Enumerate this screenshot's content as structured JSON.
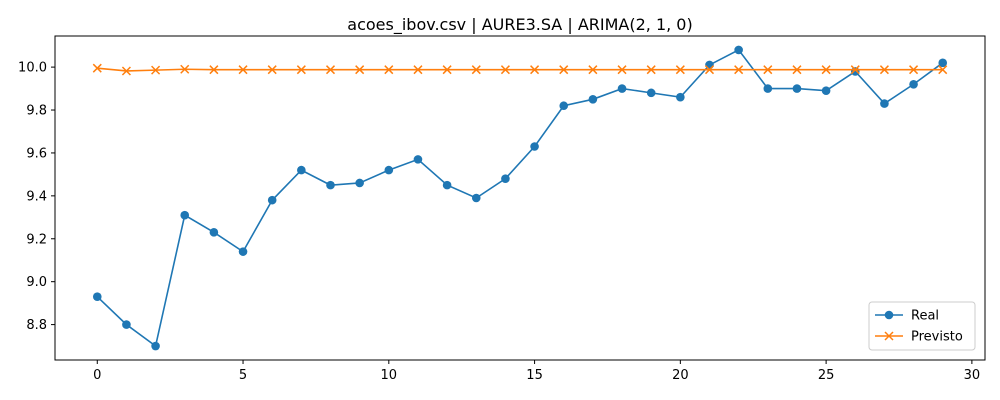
{
  "chart_data": {
    "type": "line",
    "title": "acoes_ibov.csv | AURE3.SA | ARIMA(2, 1, 0)",
    "xlabel": "",
    "ylabel": "",
    "xlim": [
      -1.45,
      30.45
    ],
    "ylim": [
      8.635,
      10.145
    ],
    "x_ticks": [
      0,
      5,
      10,
      15,
      20,
      25,
      30
    ],
    "x_tick_labels": [
      "0",
      "5",
      "10",
      "15",
      "20",
      "25",
      "30"
    ],
    "y_ticks": [
      8.8,
      9.0,
      9.2,
      9.4,
      9.6,
      9.8,
      10.0
    ],
    "y_tick_labels": [
      "8.8",
      "9.0",
      "9.2",
      "9.4",
      "9.6",
      "9.8",
      "10.0"
    ],
    "grid": false,
    "legend_position": "lower-right",
    "x": [
      0,
      1,
      2,
      3,
      4,
      5,
      6,
      7,
      8,
      9,
      10,
      11,
      12,
      13,
      14,
      15,
      16,
      17,
      18,
      19,
      20,
      21,
      22,
      23,
      24,
      25,
      26,
      27,
      28,
      29
    ],
    "series": [
      {
        "name": "Real",
        "color": "#1f77b4",
        "marker": "circle",
        "values": [
          8.93,
          8.8,
          8.7,
          9.31,
          9.23,
          9.14,
          9.38,
          9.52,
          9.45,
          9.46,
          9.52,
          9.57,
          9.45,
          9.39,
          9.48,
          9.63,
          9.82,
          9.85,
          9.9,
          9.88,
          9.86,
          10.01,
          10.08,
          9.9,
          9.9,
          9.89,
          9.98,
          9.83,
          9.92,
          10.02
        ]
      },
      {
        "name": "Previsto",
        "color": "#ff7f0e",
        "marker": "x",
        "values": [
          9.995,
          9.982,
          9.986,
          9.99,
          9.988,
          9.988,
          9.988,
          9.988,
          9.988,
          9.988,
          9.988,
          9.988,
          9.988,
          9.988,
          9.988,
          9.988,
          9.988,
          9.988,
          9.988,
          9.988,
          9.988,
          9.988,
          9.988,
          9.988,
          9.988,
          9.988,
          9.988,
          9.988,
          9.988,
          9.988
        ]
      }
    ]
  }
}
